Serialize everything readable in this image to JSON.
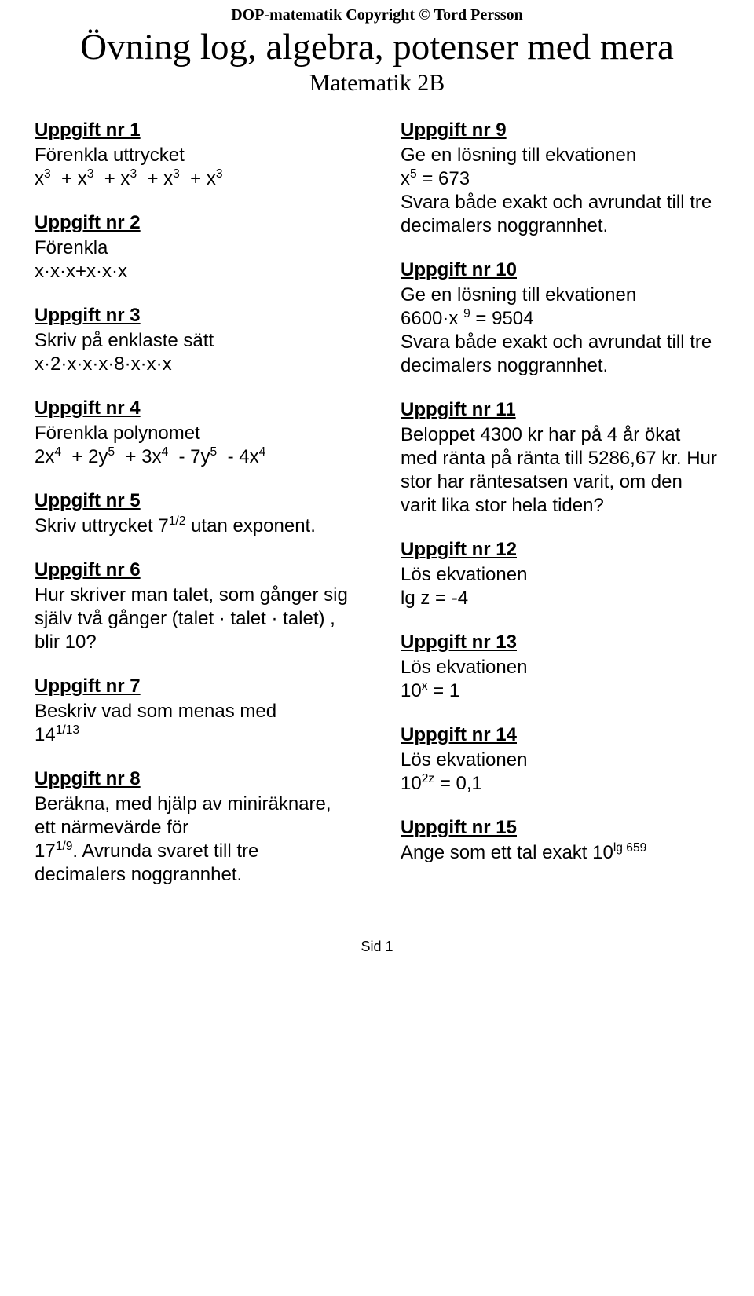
{
  "header": {
    "copyright": "DOP-matematik Copyright © Tord Persson",
    "title": "Övning log, algebra, potenser med mera",
    "subtitle": "Matematik 2B"
  },
  "left": {
    "t1": {
      "title": "Uppgift nr 1",
      "line1": "Förenkla uttrycket"
    },
    "t2": {
      "title": "Uppgift nr 2",
      "line1": "Förenkla",
      "line2": "x·x·x+x·x·x"
    },
    "t3": {
      "title": "Uppgift nr 3",
      "line1": "Skriv på enklaste sätt",
      "line2": "x·2·x·x·x·8·x·x·x"
    },
    "t4": {
      "title": "Uppgift nr 4",
      "line1": "Förenkla polynomet"
    },
    "t5": {
      "title": "Uppgift nr 5",
      "line1a": "Skriv uttrycket 7",
      "line1b": " utan exponent."
    },
    "t6": {
      "title": "Uppgift nr 6",
      "body": "Hur skriver man talet, som gånger sig själv två gånger (talet · talet · talet) , blir 10?"
    },
    "t7": {
      "title": "Uppgift nr 7",
      "line1": "Beskriv vad som menas med"
    },
    "t8": {
      "title": "Uppgift nr 8",
      "line1": "Beräkna, med hjälp av miniräknare, ett närmevärde för",
      "line2a": "17",
      "line2b": ". Avrunda svaret till tre decimalers noggrannhet."
    }
  },
  "right": {
    "t9": {
      "title": "Uppgift nr 9",
      "line1": "Ge en lösning till ekvationen",
      "eq_a": " x",
      "eq_b": " = 673",
      "line3": "Svara både exakt och avrundat till tre decimalers noggrannhet."
    },
    "t10": {
      "title": "Uppgift nr 10",
      "line1": "Ge en lösning till ekvationen",
      "eq_a": "6600·x ",
      "eq_b": " = 9504",
      "line3": "Svara både exakt och avrundat till tre decimalers noggrannhet."
    },
    "t11": {
      "title": "Uppgift nr 11",
      "body": "Beloppet 4300 kr har på 4 år ökat med ränta på ränta till 5286,67 kr. Hur stor har räntesatsen varit, om den varit lika stor hela tiden?"
    },
    "t12": {
      "title": "Uppgift nr 12",
      "line1": "Lös ekvationen",
      "line2": "lg z = -4"
    },
    "t13": {
      "title": "Uppgift nr 13",
      "line1": "Lös ekvationen",
      "eq_a": "10",
      "eq_b": " = 1"
    },
    "t14": {
      "title": "Uppgift nr 14",
      "line1": "Lös ekvationen",
      "eq_a": "10",
      "eq_b": " = 0,1"
    },
    "t15": {
      "title": "Uppgift nr 15",
      "line1": "Ange som ett tal exakt 10"
    }
  },
  "exponents": {
    "t1": [
      "3",
      "3",
      "3",
      "3",
      "3"
    ],
    "t4": [
      "4",
      "5",
      "4",
      "5",
      "4"
    ],
    "t5": "1/2",
    "t7": "1/13",
    "t8": "1/9",
    "t9": "5",
    "t10": "9",
    "t13": "x",
    "t14": "2z",
    "t15": "lg 659"
  },
  "math": {
    "t4_terms": [
      "2x",
      "+ 2y",
      "+ 3x",
      "- 7y",
      "- 4x"
    ],
    "t7_base": "14"
  },
  "footer": {
    "page": "Sid 1"
  }
}
